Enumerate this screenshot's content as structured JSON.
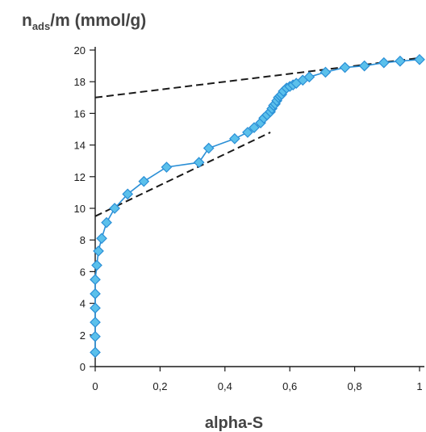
{
  "chart_data": {
    "type": "scatter",
    "title": "",
    "ylabel_main": "n",
    "ylabel_sub": "ads",
    "ylabel_rest": "/m (mmol/g)",
    "xlabel": "alpha-S",
    "xlim": [
      0,
      1
    ],
    "ylim": [
      0,
      20
    ],
    "x_ticks": [
      0,
      0.2,
      0.4,
      0.6,
      0.8,
      1
    ],
    "x_tick_labels": [
      "0",
      "0,2",
      "0,4",
      "0,6",
      "0,8",
      "1"
    ],
    "y_ticks": [
      0,
      2,
      4,
      6,
      8,
      10,
      12,
      14,
      16,
      18,
      20
    ],
    "y_tick_labels": [
      "0",
      "2",
      "4",
      "6",
      "8",
      "10",
      "12",
      "14",
      "16",
      "18",
      "20"
    ],
    "grid": false,
    "series": [
      {
        "marker": "diamond",
        "color": "#5bc0eb",
        "stroke": "#2a8fd6",
        "x": [
          0.0,
          0.0,
          0.0,
          0.0,
          0.0,
          0.0,
          0.005,
          0.01,
          0.02,
          0.035,
          0.06,
          0.1,
          0.15,
          0.22,
          0.32,
          0.35,
          0.43,
          0.47,
          0.49,
          0.51,
          0.52,
          0.53,
          0.54,
          0.545,
          0.55,
          0.555,
          0.56,
          0.565,
          0.57,
          0.575,
          0.58,
          0.59,
          0.6,
          0.61,
          0.62,
          0.64,
          0.66,
          0.71,
          0.77,
          0.83,
          0.89,
          0.94,
          1.0
        ],
        "y": [
          0.9,
          1.9,
          2.8,
          3.7,
          4.6,
          5.5,
          6.4,
          7.3,
          8.1,
          9.1,
          10.0,
          10.9,
          11.7,
          12.6,
          12.9,
          13.8,
          14.4,
          14.8,
          15.1,
          15.4,
          15.7,
          15.9,
          16.1,
          16.3,
          16.5,
          16.6,
          16.8,
          17.0,
          17.1,
          17.2,
          17.4,
          17.6,
          17.7,
          17.8,
          17.9,
          18.1,
          18.3,
          18.6,
          18.9,
          19.0,
          19.2,
          19.3,
          19.4
        ]
      }
    ],
    "trend_lines": [
      {
        "x": [
          0.0,
          0.54
        ],
        "y": [
          9.5,
          14.8
        ],
        "style": "dashed"
      },
      {
        "x": [
          0.0,
          1.0
        ],
        "y": [
          17.0,
          19.5
        ],
        "style": "dashed"
      }
    ]
  }
}
